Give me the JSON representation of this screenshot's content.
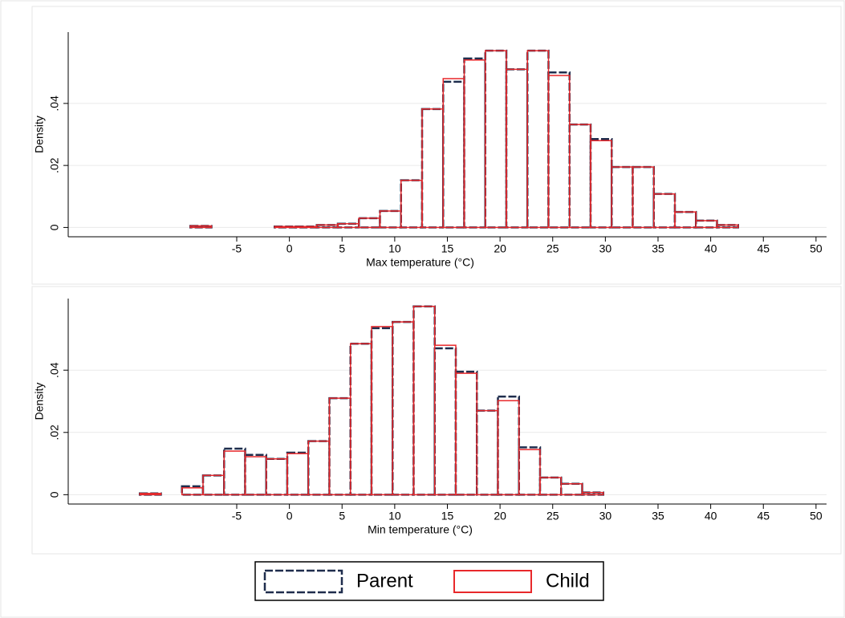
{
  "chart_data": [
    {
      "type": "histogram",
      "xlabel": "Max temperature (°C)",
      "ylabel": "Density",
      "bins": [
        -9.4,
        -7.4,
        -5.4,
        -3.4,
        -1.4,
        0.6,
        2.6,
        4.6,
        6.6,
        8.6,
        10.6,
        12.6,
        14.6,
        16.6,
        18.6,
        20.6,
        22.6,
        24.6,
        26.6,
        28.6,
        30.6,
        32.6,
        34.6,
        36.6,
        38.6,
        40.6,
        42.6
      ],
      "series": [
        {
          "name": "Parent",
          "color": "#1f2d4d",
          "values": [
            0.0005,
            0,
            0,
            0,
            0.0003,
            0.0003,
            0.0008,
            0.0012,
            0.003,
            0.0053,
            0.0152,
            0.0382,
            0.047,
            0.0545,
            0.057,
            0.051,
            0.057,
            0.05,
            0.0332,
            0.0285,
            0.0195,
            0.0195,
            0.0108,
            0.005,
            0.0022,
            0.0008
          ]
        },
        {
          "name": "Child",
          "color": "#e8282b",
          "values": [
            0.0005,
            0,
            0,
            0,
            0.0003,
            0.0003,
            0.0008,
            0.0012,
            0.003,
            0.0053,
            0.0152,
            0.0382,
            0.048,
            0.054,
            0.057,
            0.051,
            0.057,
            0.049,
            0.0332,
            0.028,
            0.0195,
            0.0195,
            0.0108,
            0.005,
            0.0022,
            0.0008
          ]
        }
      ],
      "xlim": [
        -21,
        51
      ],
      "xticks": [
        -5,
        0,
        5,
        10,
        15,
        20,
        25,
        30,
        35,
        40,
        45,
        50
      ],
      "ylim": [
        -0.003,
        0.063
      ],
      "yticks": [
        0,
        {
          "value": 0.02,
          "label": ".02"
        },
        {
          "value": 0.04,
          "label": ".04"
        }
      ],
      "grid": true
    },
    {
      "type": "histogram",
      "xlabel": "Min temperature (°C)",
      "ylabel": "Density",
      "bins": [
        -14.2,
        -12.2,
        -10.2,
        -8.2,
        -6.2,
        -4.2,
        -2.2,
        -0.2,
        1.8,
        3.8,
        5.8,
        7.8,
        9.8,
        11.8,
        13.8,
        15.8,
        17.8,
        19.8,
        21.8,
        23.8,
        25.8,
        27.8,
        29.8
      ],
      "series": [
        {
          "name": "Parent",
          "color": "#1f2d4d",
          "values": [
            0.0004,
            0,
            0.0027,
            0.0062,
            0.0148,
            0.0128,
            0.0115,
            0.0135,
            0.0172,
            0.031,
            0.0485,
            0.0535,
            0.0555,
            0.0605,
            0.047,
            0.0395,
            0.027,
            0.0315,
            0.0152,
            0.0055,
            0.0035,
            0.0007
          ]
        },
        {
          "name": "Child",
          "color": "#e8282b",
          "values": [
            0.0004,
            0,
            0.0022,
            0.0062,
            0.014,
            0.0122,
            0.0115,
            0.0132,
            0.0172,
            0.031,
            0.0485,
            0.054,
            0.0555,
            0.0605,
            0.048,
            0.039,
            0.027,
            0.0302,
            0.0145,
            0.0055,
            0.0035,
            0.0007
          ]
        }
      ],
      "xlim": [
        -21,
        51
      ],
      "xticks": [
        -5,
        0,
        5,
        10,
        15,
        20,
        25,
        30,
        35,
        40,
        45,
        50
      ],
      "ylim": [
        -0.003,
        0.063
      ],
      "yticks": [
        0,
        {
          "value": 0.02,
          "label": ".02"
        },
        {
          "value": 0.04,
          "label": ".04"
        }
      ],
      "grid": true
    }
  ]
}
